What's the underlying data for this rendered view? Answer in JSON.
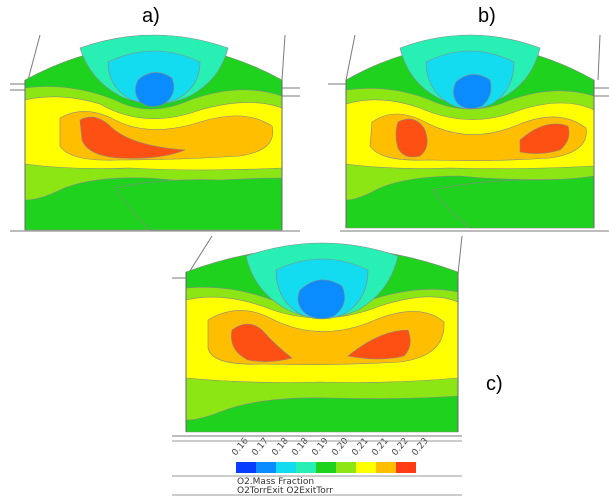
{
  "labels": {
    "a": "a)",
    "b": "b)",
    "c": "c)"
  },
  "legend": {
    "ticks": [
      "0.16",
      "0.17",
      "0.18",
      "0.18",
      "0.19",
      "0.20",
      "0.21",
      "0.21",
      "0.22",
      "0.23"
    ],
    "colors": [
      "#0a3cff",
      "#0a8cff",
      "#14dcf0",
      "#28f0b4",
      "#1ed21e",
      "#8ce614",
      "#ffff00",
      "#ffbe00",
      "#ff8200",
      "#ff3c14"
    ],
    "title": "O2.Mass Fraction",
    "subtitle": "O2TorrExit O2ExitTorr"
  },
  "colors": {
    "green": "#1ed21e",
    "lightgreen": "#8ce614",
    "yellow": "#ffff00",
    "orange": "#ffbe00",
    "red": "#ff5014",
    "mint": "#28f0b4",
    "cyan": "#14dcf0",
    "blue": "#0a8cff",
    "line": "#7a7a7a"
  }
}
